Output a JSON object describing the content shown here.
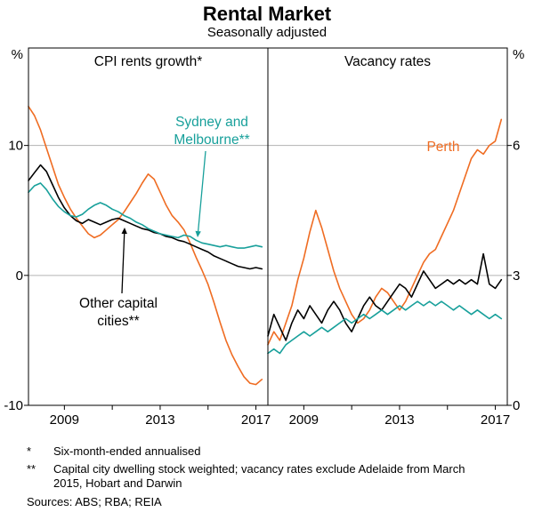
{
  "header": {
    "title": "Rental Market",
    "subtitle": "Seasonally adjusted"
  },
  "colors": {
    "orange": "#ef6c22",
    "teal": "#18a09b",
    "black": "#000000",
    "grid": "#b3b3b3"
  },
  "labels": {
    "sydney_melbourne": {
      "line1": "Sydney and",
      "line2": "Melbourne**"
    },
    "other_capitals": {
      "line1": "Other capital",
      "line2": "cities**"
    },
    "perth": "Perth"
  },
  "chart_data": [
    {
      "type": "line",
      "panel": "left",
      "title": "CPI rents growth*",
      "unit": "%",
      "ylim": [
        -10,
        17.5
      ],
      "yticks": [
        10,
        0,
        -10
      ],
      "xlim": [
        2007.5,
        2017.5
      ],
      "xticks": [
        2009,
        2013,
        2017
      ],
      "xticks_minor": [
        2009,
        2011,
        2013,
        2015,
        2017
      ],
      "x": [
        2007.5,
        2007.75,
        2008,
        2008.25,
        2008.5,
        2008.75,
        2009,
        2009.25,
        2009.5,
        2009.75,
        2010,
        2010.25,
        2010.5,
        2010.75,
        2011,
        2011.25,
        2011.5,
        2011.75,
        2012,
        2012.25,
        2012.5,
        2012.75,
        2013,
        2013.25,
        2013.5,
        2013.75,
        2014,
        2014.25,
        2014.5,
        2014.75,
        2015,
        2015.25,
        2015.5,
        2015.75,
        2016,
        2016.25,
        2016.5,
        2016.75,
        2017,
        2017.25
      ],
      "series": [
        {
          "name": "Perth",
          "color": "orange",
          "values": [
            13.0,
            12.3,
            11.2,
            9.8,
            8.4,
            7.0,
            6.0,
            5.1,
            4.4,
            3.8,
            3.2,
            2.9,
            3.1,
            3.5,
            3.9,
            4.3,
            4.9,
            5.6,
            6.3,
            7.1,
            7.8,
            7.4,
            6.4,
            5.4,
            4.6,
            4.1,
            3.5,
            2.5,
            1.4,
            0.4,
            -0.7,
            -2.1,
            -3.6,
            -5.0,
            -6.1,
            -7.0,
            -7.8,
            -8.3,
            -8.4,
            -8.0
          ]
        },
        {
          "name": "Other capital cities",
          "color": "black",
          "values": [
            7.3,
            7.9,
            8.5,
            8.0,
            7.0,
            6.0,
            5.2,
            4.6,
            4.2,
            4.0,
            4.3,
            4.1,
            3.9,
            4.1,
            4.3,
            4.4,
            4.2,
            4.0,
            3.8,
            3.6,
            3.5,
            3.3,
            3.2,
            3.0,
            2.9,
            2.7,
            2.6,
            2.4,
            2.2,
            2.0,
            1.8,
            1.5,
            1.3,
            1.1,
            0.9,
            0.7,
            0.6,
            0.5,
            0.6,
            0.5
          ]
        },
        {
          "name": "Sydney and Melbourne",
          "color": "teal",
          "values": [
            6.4,
            6.9,
            7.1,
            6.6,
            5.9,
            5.3,
            4.9,
            4.6,
            4.5,
            4.7,
            5.1,
            5.4,
            5.6,
            5.4,
            5.1,
            4.9,
            4.6,
            4.4,
            4.1,
            3.9,
            3.6,
            3.4,
            3.2,
            3.1,
            3.0,
            2.9,
            3.1,
            3.0,
            2.7,
            2.5,
            2.4,
            2.3,
            2.2,
            2.3,
            2.2,
            2.1,
            2.1,
            2.2,
            2.3,
            2.2
          ]
        }
      ]
    },
    {
      "type": "line",
      "panel": "right",
      "title": "Vacancy rates",
      "unit": "%",
      "ylim": [
        0,
        8.25
      ],
      "yticks": [
        6,
        3,
        0
      ],
      "xlim": [
        2007.5,
        2017.5
      ],
      "xticks": [
        2009,
        2013,
        2017
      ],
      "xticks_minor": [
        2009,
        2011,
        2013,
        2015,
        2017
      ],
      "x": [
        2007.5,
        2007.75,
        2008,
        2008.25,
        2008.5,
        2008.75,
        2009,
        2009.25,
        2009.5,
        2009.75,
        2010,
        2010.25,
        2010.5,
        2010.75,
        2011,
        2011.25,
        2011.5,
        2011.75,
        2012,
        2012.25,
        2012.5,
        2012.75,
        2013,
        2013.25,
        2013.5,
        2013.75,
        2014,
        2014.25,
        2014.5,
        2014.75,
        2015,
        2015.25,
        2015.5,
        2015.75,
        2016,
        2016.25,
        2016.5,
        2016.75,
        2017,
        2017.25
      ],
      "series": [
        {
          "name": "Perth",
          "color": "orange",
          "values": [
            1.4,
            1.7,
            1.5,
            1.9,
            2.3,
            2.9,
            3.4,
            4.0,
            4.5,
            4.1,
            3.6,
            3.1,
            2.7,
            2.4,
            2.1,
            1.9,
            2.0,
            2.2,
            2.5,
            2.7,
            2.6,
            2.4,
            2.2,
            2.4,
            2.7,
            3.0,
            3.3,
            3.5,
            3.6,
            3.9,
            4.2,
            4.5,
            4.9,
            5.3,
            5.7,
            5.9,
            5.8,
            6.0,
            6.1,
            6.6
          ]
        },
        {
          "name": "Other capital cities",
          "color": "black",
          "values": [
            1.6,
            2.1,
            1.8,
            1.5,
            1.9,
            2.2,
            2.0,
            2.3,
            2.1,
            1.9,
            2.2,
            2.4,
            2.2,
            1.9,
            1.7,
            2.0,
            2.3,
            2.5,
            2.3,
            2.2,
            2.4,
            2.6,
            2.8,
            2.7,
            2.5,
            2.8,
            3.1,
            2.9,
            2.7,
            2.8,
            2.9,
            2.8,
            2.9,
            2.8,
            2.9,
            2.8,
            3.5,
            2.8,
            2.7,
            2.9
          ]
        },
        {
          "name": "Sydney and Melbourne",
          "color": "teal",
          "values": [
            1.2,
            1.3,
            1.2,
            1.4,
            1.5,
            1.6,
            1.7,
            1.6,
            1.7,
            1.8,
            1.7,
            1.8,
            1.9,
            2.0,
            1.9,
            2.0,
            2.1,
            2.0,
            2.1,
            2.2,
            2.1,
            2.2,
            2.3,
            2.2,
            2.3,
            2.4,
            2.3,
            2.4,
            2.3,
            2.4,
            2.3,
            2.2,
            2.3,
            2.2,
            2.1,
            2.2,
            2.1,
            2.0,
            2.1,
            2.0
          ]
        }
      ]
    }
  ],
  "footnotes": [
    {
      "marker": "*",
      "text": "Six-month-ended annualised"
    },
    {
      "marker": "**",
      "text": "Capital city dwelling stock weighted; vacancy rates exclude Adelaide from March 2015, Hobart and Darwin"
    }
  ],
  "sources": "Sources: ABS; RBA; REIA"
}
